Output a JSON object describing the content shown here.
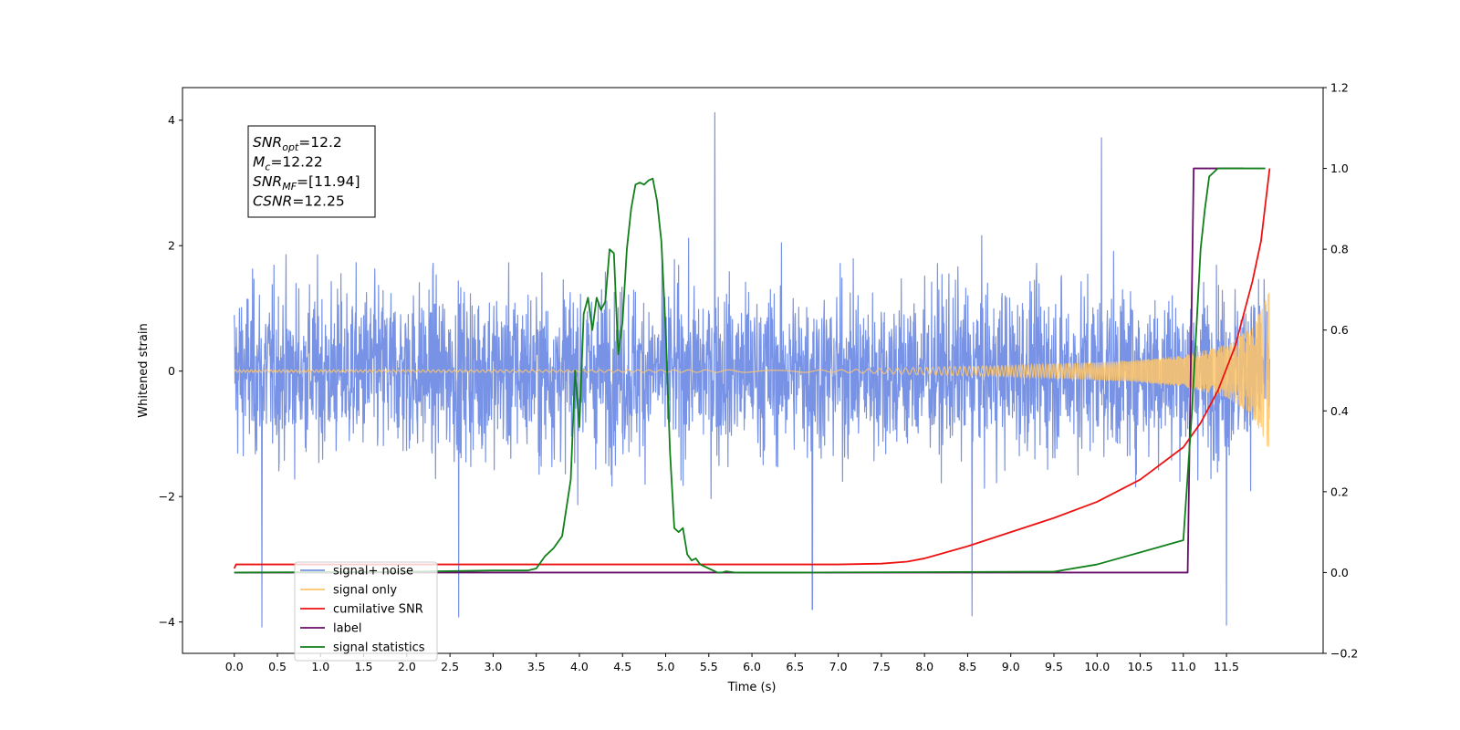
{
  "chart_data": {
    "type": "line",
    "title": "",
    "xlabel": "Time (s)",
    "ylabel": "Whitened strain",
    "xlim": [
      -0.6,
      12.62
    ],
    "ylim": [
      -4.5,
      4.52
    ],
    "y2lim": [
      -0.2,
      1.2
    ],
    "x_ticks": [
      0.0,
      0.5,
      1.0,
      1.5,
      2.0,
      2.5,
      3.0,
      3.5,
      4.0,
      4.5,
      5.0,
      5.5,
      6.0,
      6.5,
      7.0,
      7.5,
      8.0,
      8.5,
      9.0,
      9.5,
      10.0,
      10.5,
      11.0,
      11.5
    ],
    "x_tick_labels": [
      "0.0",
      "0.5",
      "1.0",
      "1.5",
      "2.0",
      "2.5",
      "3.0",
      "3.5",
      "4.0",
      "4.5",
      "5.0",
      "5.5",
      "6.0",
      "6.5",
      "7.0",
      "7.5",
      "8.0",
      "8.5",
      "9.0",
      "9.5",
      "10.0",
      "10.5",
      "11.0",
      "11.5"
    ],
    "y_ticks": [
      -4,
      -2,
      0,
      2,
      4
    ],
    "y_tick_labels": [
      "−4",
      "−2",
      "0",
      "2",
      "4"
    ],
    "y2_ticks": [
      -0.2,
      0.0,
      0.2,
      0.4,
      0.6,
      0.8,
      1.0,
      1.2
    ],
    "y2_tick_labels": [
      "−0.2",
      "0.0",
      "0.2",
      "0.4",
      "0.6",
      "0.8",
      "1.0",
      "1.2"
    ],
    "grid": false,
    "legend_position": "bottom-left",
    "annotation": {
      "lines": [
        {
          "base": "SNR",
          "sub": "opt",
          "rest": "=12.2"
        },
        {
          "base": "M",
          "sub": "c",
          "rest": "=12.22"
        },
        {
          "base": "SNR",
          "sub": "MF",
          "rest": "=[11.94]"
        },
        {
          "base": "CSNR",
          "sub": "",
          "rest": "=12.25"
        }
      ]
    },
    "series": [
      {
        "name": "signal+ noise",
        "color": "#7893e6",
        "axis": "left",
        "description_values": {
          "t_start": 0.0,
          "t_end": 12.0,
          "noise_std": 1.0,
          "peak_max": 4.12,
          "peak_min": -4.08
        },
        "notable_peaks": [
          [
            0.32,
            -4.08
          ],
          [
            2.6,
            -3.92
          ],
          [
            5.57,
            4.12
          ],
          [
            10.05,
            3.72
          ],
          [
            11.5,
            -4.05
          ],
          [
            8.55,
            -3.9
          ],
          [
            6.7,
            -3.8
          ]
        ]
      },
      {
        "name": "signal only",
        "color": "#ffc567",
        "axis": "left",
        "envelope": {
          "t": [
            0.0,
            4.0,
            7.0,
            8.0,
            9.0,
            10.0,
            10.5,
            11.0,
            11.5,
            11.8,
            12.0
          ],
          "amp": [
            0.02,
            0.02,
            0.02,
            0.06,
            0.09,
            0.14,
            0.18,
            0.25,
            0.42,
            0.7,
            1.28
          ]
        }
      },
      {
        "name": "cumilative SNR",
        "color": "#ee1111",
        "axis": "right",
        "x": [
          0.0,
          0.02,
          4.0,
          7.0,
          7.5,
          7.8,
          8.0,
          8.5,
          9.0,
          9.5,
          10.0,
          10.5,
          11.0,
          11.2,
          11.4,
          11.6,
          11.8,
          11.9,
          12.0
        ],
        "y": [
          0.01,
          0.02,
          0.02,
          0.02,
          0.022,
          0.027,
          0.035,
          0.065,
          0.1,
          0.135,
          0.175,
          0.23,
          0.31,
          0.37,
          0.45,
          0.56,
          0.72,
          0.82,
          1.0
        ]
      },
      {
        "name": "label",
        "color": "#6a0d6a",
        "axis": "right",
        "x": [
          0.0,
          11.05,
          11.12,
          11.7
        ],
        "y": [
          0.0,
          0.0,
          1.0,
          1.0
        ]
      },
      {
        "name": "signal statistics",
        "color": "#11801a",
        "axis": "right",
        "x": [
          0.0,
          2.0,
          3.0,
          3.4,
          3.5,
          3.6,
          3.7,
          3.8,
          3.9,
          3.95,
          4.0,
          4.05,
          4.1,
          4.15,
          4.2,
          4.25,
          4.3,
          4.35,
          4.4,
          4.45,
          4.5,
          4.55,
          4.6,
          4.65,
          4.7,
          4.75,
          4.8,
          4.85,
          4.9,
          4.95,
          5.0,
          5.05,
          5.1,
          5.15,
          5.2,
          5.25,
          5.3,
          5.35,
          5.4,
          5.45,
          5.5,
          5.55,
          5.6,
          5.65,
          5.7,
          5.8,
          6.0,
          6.5,
          9.5,
          10.0,
          11.0,
          11.1,
          11.2,
          11.25,
          11.3,
          11.35,
          11.4,
          11.45,
          11.5,
          11.55,
          11.6,
          11.95
        ],
        "y": [
          0.0,
          0.002,
          0.005,
          0.005,
          0.01,
          0.04,
          0.06,
          0.09,
          0.23,
          0.5,
          0.36,
          0.64,
          0.68,
          0.6,
          0.68,
          0.65,
          0.67,
          0.8,
          0.79,
          0.54,
          0.62,
          0.8,
          0.9,
          0.96,
          0.965,
          0.96,
          0.97,
          0.975,
          0.92,
          0.82,
          0.6,
          0.3,
          0.11,
          0.1,
          0.11,
          0.045,
          0.03,
          0.035,
          0.02,
          0.015,
          0.01,
          0.005,
          0.0,
          0.0,
          0.003,
          0.0,
          0.0,
          0.0,
          0.002,
          0.02,
          0.08,
          0.4,
          0.8,
          0.9,
          0.98,
          0.99,
          1.0,
          1.0,
          1.0,
          1.0,
          1.0,
          1.0
        ]
      }
    ]
  }
}
